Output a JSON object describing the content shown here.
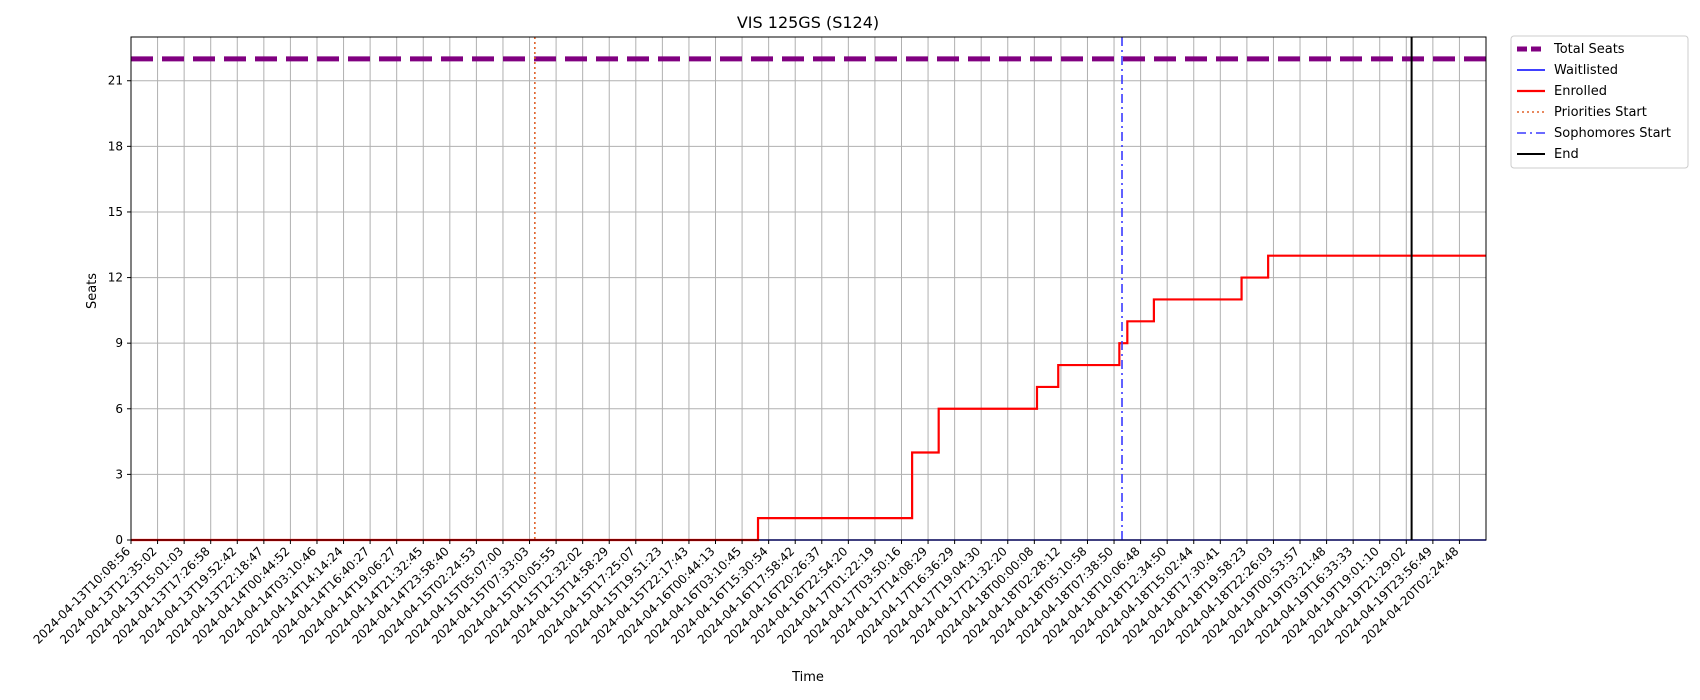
{
  "chart_data": {
    "type": "line",
    "title": "VIS 125GS (S124)",
    "xlabel": "Time",
    "ylabel": "Seats",
    "ylim": [
      0,
      23
    ],
    "yticks": [
      0,
      3,
      6,
      9,
      12,
      15,
      18,
      21
    ],
    "grid": true,
    "legend_position": "outside-top-right",
    "x_tick_labels": [
      "2024-04-13T10:08:56",
      "2024-04-13T12:35:02",
      "2024-04-13T15:01:03",
      "2024-04-13T17:26:58",
      "2024-04-13T19:52:42",
      "2024-04-13T22:18:47",
      "2024-04-14T00:44:52",
      "2024-04-14T03:10:46",
      "2024-04-14T14:14:24",
      "2024-04-14T16:40:27",
      "2024-04-14T19:06:27",
      "2024-04-14T21:32:45",
      "2024-04-14T23:58:40",
      "2024-04-15T02:24:53",
      "2024-04-15T05:07:00",
      "2024-04-15T07:33:03",
      "2024-04-15T10:05:55",
      "2024-04-15T12:32:02",
      "2024-04-15T14:58:29",
      "2024-04-15T17:25:07",
      "2024-04-15T19:51:23",
      "2024-04-15T22:17:43",
      "2024-04-16T00:44:13",
      "2024-04-16T03:10:45",
      "2024-04-16T15:30:54",
      "2024-04-16T17:58:42",
      "2024-04-16T20:26:37",
      "2024-04-16T22:54:20",
      "2024-04-17T01:22:19",
      "2024-04-17T03:50:16",
      "2024-04-17T14:08:29",
      "2024-04-17T16:36:29",
      "2024-04-17T19:04:30",
      "2024-04-17T21:32:20",
      "2024-04-18T00:00:08",
      "2024-04-18T02:28:12",
      "2024-04-18T05:10:58",
      "2024-04-18T07:38:50",
      "2024-04-18T10:06:48",
      "2024-04-18T12:34:50",
      "2024-04-18T15:02:44",
      "2024-04-18T17:30:41",
      "2024-04-18T19:58:23",
      "2024-04-18T22:26:03",
      "2024-04-19T00:53:57",
      "2024-04-19T03:21:48",
      "2024-04-19T16:33:33",
      "2024-04-19T19:01:10",
      "2024-04-19T21:29:02",
      "2024-04-19T23:56:49",
      "2024-04-20T02:24:48"
    ],
    "x_extent_ticks": [
      0,
      51
    ],
    "series": [
      {
        "name": "Total Seats",
        "style": "dashed",
        "color": "#800080",
        "points": [
          [
            0,
            22
          ],
          [
            51,
            22
          ]
        ]
      },
      {
        "name": "Waitlisted",
        "style": "solid",
        "color": "#0000ff",
        "points": [
          [
            0,
            0
          ],
          [
            51,
            0
          ]
        ]
      },
      {
        "name": "Enrolled",
        "style": "solid",
        "color": "#ff0000",
        "points": [
          [
            0,
            0
          ],
          [
            23.6,
            0
          ],
          [
            23.6,
            1
          ],
          [
            29.4,
            1
          ],
          [
            29.4,
            4
          ],
          [
            30.4,
            4
          ],
          [
            30.4,
            6
          ],
          [
            34.1,
            6
          ],
          [
            34.1,
            7
          ],
          [
            34.9,
            7
          ],
          [
            34.9,
            8
          ],
          [
            37.2,
            8
          ],
          [
            37.2,
            9
          ],
          [
            37.5,
            9
          ],
          [
            37.5,
            10
          ],
          [
            38.5,
            10
          ],
          [
            38.5,
            11
          ],
          [
            41.8,
            11
          ],
          [
            41.8,
            12
          ],
          [
            42.8,
            12
          ],
          [
            42.8,
            13
          ],
          [
            51,
            13
          ]
        ]
      }
    ],
    "vertical_markers": [
      {
        "name": "Priorities Start",
        "x": 15.2,
        "style": "dotted",
        "color": "#e0622a"
      },
      {
        "name": "Sophomores Start",
        "x": 37.3,
        "style": "dashdot",
        "color": "#3a3aff"
      },
      {
        "name": "End",
        "x": 48.2,
        "style": "solid",
        "color": "#000000"
      }
    ],
    "legend": [
      "Total Seats",
      "Waitlisted",
      "Enrolled",
      "Priorities Start",
      "Sophomores Start",
      "End"
    ]
  }
}
